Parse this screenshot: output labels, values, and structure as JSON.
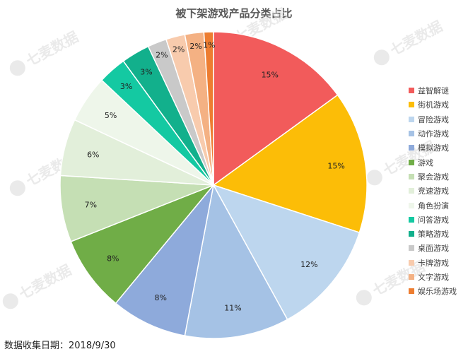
{
  "chart_data": {
    "type": "pie",
    "title": "被下架游戏产品分类占比",
    "categories": [
      "益智解谜",
      "街机游戏",
      "冒险游戏",
      "动作游戏",
      "模拟游戏",
      "游戏",
      "聚会游戏",
      "竞速游戏",
      "角色扮演",
      "问答游戏",
      "策略游戏",
      "桌面游戏",
      "卡牌游戏",
      "文字游戏",
      "娱乐场游戏"
    ],
    "values": [
      15,
      15,
      12,
      11,
      8,
      8,
      7,
      6,
      5,
      3,
      3,
      2,
      2,
      2,
      1
    ],
    "labels": [
      "15%",
      "15%",
      "12%",
      "11%",
      "8%",
      "8%",
      "7%",
      "6%",
      "5%",
      "3%",
      "3%",
      "2%",
      "2%",
      "2%",
      "1%"
    ],
    "colors": [
      "#f25b5b",
      "#fcbd07",
      "#bdd6ee",
      "#a5c2e5",
      "#8eaadb",
      "#70ad47",
      "#c5dfb4",
      "#e2efda",
      "#eef6ea",
      "#14c9a2",
      "#12b08c",
      "#c9c9c9",
      "#f8cbad",
      "#f4b183",
      "#ed7d31"
    ],
    "legend_position": "right",
    "unit": "%"
  },
  "footer": {
    "text": "数据收集日期：2018/9/30"
  },
  "watermark": {
    "text": "七麦数据"
  }
}
